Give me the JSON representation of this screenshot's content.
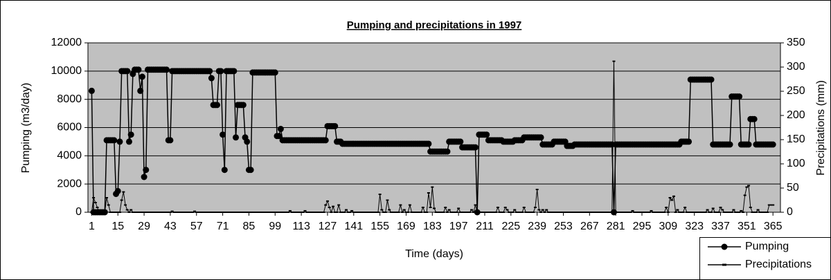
{
  "chart_data": {
    "type": "line",
    "title": "Pumping and precipitations in 1997",
    "xlabel": "Time (days)",
    "ylabel": "Pumping (m3/day)",
    "y2label": "Precipitations (mm)",
    "background": "#c0c0c0",
    "grid": true,
    "legend": "bottom-right",
    "xlim": [
      -1,
      369
    ],
    "xticks": [
      1,
      15,
      29,
      43,
      57,
      71,
      85,
      99,
      113,
      127,
      141,
      155,
      169,
      183,
      197,
      211,
      225,
      239,
      253,
      267,
      281,
      295,
      309,
      323,
      337,
      351,
      365
    ],
    "ylim": [
      0,
      12000
    ],
    "yticks": [
      0,
      2000,
      4000,
      6000,
      8000,
      10000,
      12000
    ],
    "y2lim": [
      0,
      350
    ],
    "y2ticks": [
      0,
      50,
      100,
      150,
      200,
      250,
      300,
      350
    ],
    "x": [
      1,
      2,
      3,
      4,
      5,
      6,
      7,
      8,
      9,
      10,
      11,
      12,
      13,
      14,
      15,
      16,
      17,
      18,
      19,
      20,
      21,
      22,
      23,
      24,
      25,
      26,
      27,
      28,
      29,
      30,
      31,
      32,
      33,
      34,
      35,
      36,
      37,
      38,
      39,
      40,
      41,
      42,
      43,
      44,
      45,
      46,
      47,
      48,
      49,
      50,
      51,
      52,
      53,
      54,
      55,
      56,
      57,
      58,
      59,
      60,
      61,
      62,
      63,
      64,
      65,
      66,
      67,
      68,
      69,
      70,
      71,
      72,
      73,
      74,
      75,
      76,
      77,
      78,
      79,
      80,
      81,
      82,
      83,
      84,
      85,
      86,
      87,
      88,
      89,
      90,
      91,
      92,
      93,
      94,
      95,
      96,
      97,
      98,
      99,
      100,
      101,
      102,
      103,
      104,
      105,
      106,
      107,
      108,
      109,
      110,
      111,
      112,
      113,
      114,
      115,
      116,
      117,
      118,
      119,
      120,
      121,
      122,
      123,
      124,
      125,
      126,
      127,
      128,
      129,
      130,
      131,
      132,
      133,
      134,
      135,
      136,
      137,
      138,
      139,
      140,
      141,
      142,
      143,
      144,
      145,
      146,
      147,
      148,
      149,
      150,
      151,
      152,
      153,
      154,
      155,
      156,
      157,
      158,
      159,
      160,
      161,
      162,
      163,
      164,
      165,
      166,
      167,
      168,
      169,
      170,
      171,
      172,
      173,
      174,
      175,
      176,
      177,
      178,
      179,
      180,
      181,
      182,
      183,
      184,
      185,
      186,
      187,
      188,
      189,
      190,
      191,
      192,
      193,
      194,
      195,
      196,
      197,
      198,
      199,
      200,
      201,
      202,
      203,
      204,
      205,
      206,
      207,
      208,
      209,
      210,
      211,
      212,
      213,
      214,
      215,
      216,
      217,
      218,
      219,
      220,
      221,
      222,
      223,
      224,
      225,
      226,
      227,
      228,
      229,
      230,
      231,
      232,
      233,
      234,
      235,
      236,
      237,
      238,
      239,
      240,
      241,
      242,
      243,
      244,
      245,
      246,
      247,
      248,
      249,
      250,
      251,
      252,
      253,
      254,
      255,
      256,
      257,
      258,
      259,
      260,
      261,
      262,
      263,
      264,
      265,
      266,
      267,
      268,
      269,
      270,
      271,
      272,
      273,
      274,
      275,
      276,
      277,
      278,
      279,
      280,
      281,
      282,
      283,
      284,
      285,
      286,
      287,
      288,
      289,
      290,
      291,
      292,
      293,
      294,
      295,
      296,
      297,
      298,
      299,
      300,
      301,
      302,
      303,
      304,
      305,
      306,
      307,
      308,
      309,
      310,
      311,
      312,
      313,
      314,
      315,
      316,
      317,
      318,
      319,
      320,
      321,
      322,
      323,
      324,
      325,
      326,
      327,
      328,
      329,
      330,
      331,
      332,
      333,
      334,
      335,
      336,
      337,
      338,
      339,
      340,
      341,
      342,
      343,
      344,
      345,
      346,
      347,
      348,
      349,
      350,
      351,
      352,
      353,
      354,
      355,
      356,
      357,
      358,
      359,
      360,
      361,
      362,
      363,
      364,
      365
    ],
    "series": [
      {
        "name": "Pumping",
        "color": "#000000",
        "marker": "circle",
        "values": [
          8600,
          0,
          0,
          0,
          0,
          0,
          0,
          0,
          5100,
          5100,
          5100,
          5100,
          5100,
          1300,
          1500,
          5000,
          10000,
          10000,
          10000,
          10000,
          5000,
          5500,
          9800,
          10100,
          10100,
          10100,
          8600,
          9600,
          2500,
          3000,
          10100,
          10100,
          10100,
          10100,
          10100,
          10100,
          10100,
          10100,
          10100,
          10100,
          10100,
          5100,
          5100,
          10000,
          10000,
          10000,
          10000,
          10000,
          10000,
          10000,
          10000,
          10000,
          10000,
          10000,
          10000,
          10000,
          10000,
          10000,
          10000,
          10000,
          10000,
          10000,
          10000,
          10000,
          9500,
          7600,
          7600,
          7600,
          10000,
          10000,
          5500,
          3000,
          10000,
          10000,
          10000,
          10000,
          10000,
          5300,
          7600,
          7600,
          7600,
          7600,
          5300,
          5000,
          3000,
          3000,
          9900,
          9900,
          9900,
          9900,
          9900,
          9900,
          9900,
          9900,
          9900,
          9900,
          9900,
          9900,
          9900,
          5400,
          5400,
          5900,
          5100,
          5100,
          5100,
          5100,
          5100,
          5100,
          5100,
          5100,
          5100,
          5100,
          5100,
          5100,
          5100,
          5100,
          5100,
          5100,
          5100,
          5100,
          5100,
          5100,
          5100,
          5100,
          5100,
          5100,
          6100,
          6100,
          6100,
          6100,
          6100,
          5000,
          5000,
          5000,
          4850,
          4850,
          4850,
          4850,
          4850,
          4850,
          4850,
          4850,
          4850,
          4850,
          4850,
          4850,
          4850,
          4850,
          4850,
          4850,
          4850,
          4850,
          4850,
          4850,
          4850,
          4850,
          4850,
          4850,
          4850,
          4850,
          4850,
          4850,
          4850,
          4850,
          4850,
          4850,
          4850,
          4850,
          4850,
          4850,
          4850,
          4850,
          4850,
          4850,
          4850,
          4850,
          4850,
          4850,
          4850,
          4850,
          4850,
          4300,
          4300,
          4300,
          4300,
          4300,
          4300,
          4300,
          4300,
          4300,
          4300,
          5000,
          5000,
          5000,
          5000,
          5000,
          5000,
          5000,
          4600,
          4600,
          4600,
          4600,
          4600,
          4600,
          4600,
          4600,
          0,
          5500,
          5500,
          5500,
          5500,
          5500,
          5100,
          5100,
          5100,
          5100,
          5100,
          5100,
          5100,
          5100,
          5000,
          5000,
          5000,
          5000,
          5000,
          5000,
          5100,
          5100,
          5100,
          5100,
          5100,
          5300,
          5300,
          5300,
          5300,
          5300,
          5300,
          5300,
          5300,
          5300,
          5300,
          4800,
          4800,
          4800,
          4800,
          4800,
          4800,
          5000,
          5000,
          5000,
          5000,
          5000,
          5000,
          5000,
          4700,
          4700,
          4700,
          4700,
          4800,
          4800,
          4800,
          4800,
          4800,
          4800,
          4800,
          4800,
          4800,
          4800,
          4800,
          4800,
          4800,
          4800,
          4800,
          4800,
          4800,
          4800,
          4800,
          4800,
          4800,
          0,
          4800,
          4800,
          4800,
          4800,
          4800,
          4800,
          4800,
          4800,
          4800,
          4800,
          4800,
          4800,
          4800,
          4800,
          4800,
          4800,
          4800,
          4800,
          4800,
          4800,
          4800,
          4800,
          4800,
          4800,
          4800,
          4800,
          4800,
          4800,
          4800,
          4800,
          4800,
          4800,
          4800,
          4800,
          4800,
          5000,
          5000,
          5000,
          5000,
          5000,
          9400,
          9400,
          9400,
          9400,
          9400,
          9400,
          9400,
          9400,
          9400,
          9400,
          9400,
          9400,
          4800,
          4800,
          4800,
          4800,
          4800,
          4800,
          4800,
          4800,
          4800,
          4800,
          8200,
          8200,
          8200,
          8200,
          8200,
          4800,
          4800,
          4800,
          4800,
          4800,
          6600,
          6600,
          6600,
          4800,
          4800,
          4800,
          4800,
          4800,
          4800,
          4800,
          4800,
          4800,
          4800
        ]
      },
      {
        "name": "Precipitations",
        "color": "#000000",
        "marker": "dash",
        "axis": "y2",
        "values": [
          0,
          30,
          20,
          10,
          0,
          0,
          0,
          0,
          30,
          15,
          0,
          0,
          0,
          0,
          0,
          0,
          25,
          42,
          15,
          5,
          0,
          5,
          0,
          0,
          0,
          0,
          0,
          0,
          0,
          0,
          0,
          0,
          0,
          0,
          0,
          0,
          0,
          0,
          0,
          0,
          0,
          0,
          0,
          2,
          0,
          0,
          0,
          0,
          0,
          0,
          0,
          0,
          0,
          0,
          0,
          2,
          0,
          0,
          0,
          0,
          0,
          0,
          0,
          0,
          0,
          0,
          0,
          0,
          0,
          0,
          0,
          0,
          0,
          0,
          0,
          0,
          0,
          0,
          0,
          0,
          0,
          0,
          0,
          0,
          0,
          0,
          0,
          0,
          0,
          0,
          0,
          0,
          0,
          0,
          0,
          0,
          0,
          0,
          0,
          0,
          0,
          0,
          0,
          0,
          0,
          0,
          3,
          0,
          0,
          0,
          0,
          0,
          0,
          0,
          3,
          0,
          0,
          0,
          0,
          0,
          0,
          0,
          0,
          0,
          0,
          15,
          23,
          10,
          0,
          12,
          0,
          0,
          15,
          0,
          0,
          0,
          5,
          0,
          0,
          3,
          0,
          0,
          0,
          0,
          0,
          0,
          0,
          0,
          0,
          0,
          0,
          0,
          0,
          0,
          37,
          5,
          0,
          0,
          25,
          5,
          0,
          0,
          0,
          0,
          0,
          15,
          0,
          5,
          0,
          0,
          15,
          0,
          0,
          0,
          0,
          0,
          0,
          10,
          0,
          0,
          40,
          10,
          52,
          8,
          0,
          0,
          0,
          0,
          0,
          10,
          0,
          5,
          0,
          0,
          0,
          0,
          8,
          0,
          0,
          0,
          0,
          0,
          0,
          5,
          0,
          15,
          0,
          0,
          0,
          0,
          0,
          0,
          0,
          0,
          0,
          0,
          0,
          10,
          0,
          0,
          0,
          10,
          5,
          0,
          0,
          0,
          5,
          0,
          0,
          0,
          0,
          10,
          0,
          0,
          0,
          0,
          0,
          10,
          47,
          5,
          0,
          5,
          0,
          5,
          0,
          0,
          0,
          0,
          0,
          0,
          0,
          0,
          0,
          0,
          0,
          0,
          0,
          0,
          0,
          0,
          0,
          0,
          0,
          0,
          0,
          0,
          0,
          0,
          0,
          0,
          0,
          0,
          0,
          0,
          0,
          0,
          0,
          0,
          0,
          312,
          0,
          0,
          0,
          0,
          0,
          0,
          0,
          0,
          0,
          3,
          0,
          0,
          0,
          0,
          0,
          0,
          0,
          0,
          0,
          3,
          0,
          0,
          0,
          0,
          0,
          0,
          0,
          10,
          0,
          30,
          25,
          33,
          0,
          5,
          0,
          0,
          0,
          10,
          0,
          0,
          0,
          0,
          0,
          0,
          0,
          0,
          0,
          0,
          0,
          5,
          0,
          0,
          8,
          0,
          0,
          0,
          10,
          5,
          0,
          0,
          0,
          0,
          0,
          5,
          0,
          0,
          0,
          3,
          0,
          35,
          52,
          55,
          10,
          0,
          0,
          0,
          5,
          0,
          0,
          0,
          0,
          0,
          15,
          15,
          15
        ]
      }
    ]
  }
}
